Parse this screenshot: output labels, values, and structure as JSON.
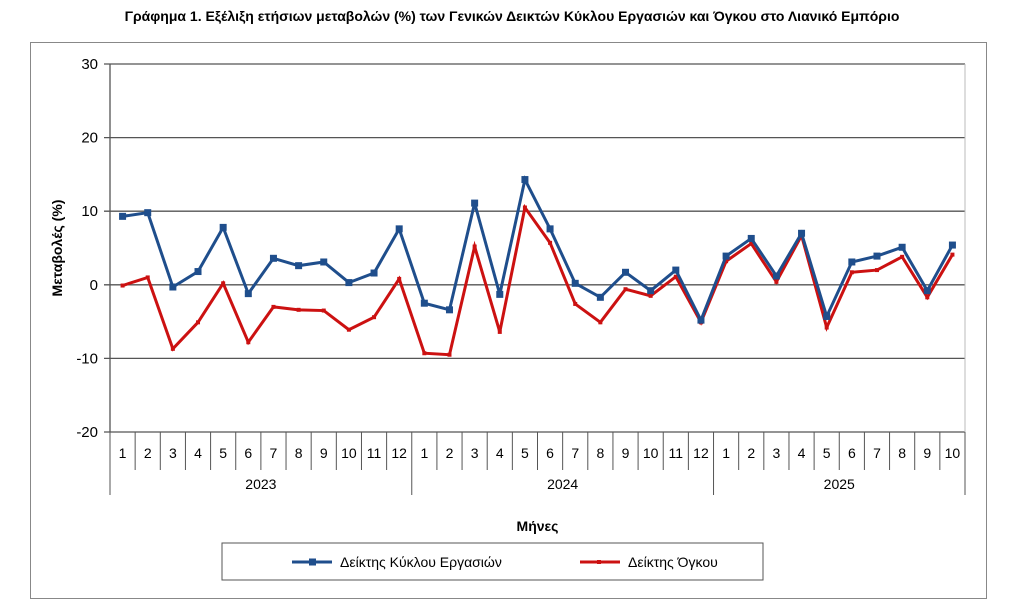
{
  "chart_data": {
    "type": "line",
    "title": "Γράφημα 1. Εξέλιξη ετήσιων μεταβολών (%) των Γενικών Δεικτών Κύκλου Εργασιών και Όγκου στο Λιανικό Εμπόριο",
    "xlabel": "Μήνες",
    "ylabel": "Μεταβολές (%)",
    "ylim": [
      -20,
      30
    ],
    "yticks": [
      "30",
      "20",
      "10",
      "0",
      "-10",
      "-20"
    ],
    "grid": true,
    "legend_position": "bottom",
    "years": [
      {
        "label": "2023",
        "months": 12
      },
      {
        "label": "2024",
        "months": 12
      },
      {
        "label": "2025",
        "months": 10
      }
    ],
    "months": [
      "1",
      "2",
      "3",
      "4",
      "5",
      "6",
      "7",
      "8",
      "9",
      "10",
      "11",
      "12",
      "1",
      "2",
      "3",
      "4",
      "5",
      "6",
      "7",
      "8",
      "9",
      "10",
      "11",
      "12",
      "1",
      "2",
      "3",
      "4",
      "5",
      "6",
      "7",
      "8",
      "9",
      "10"
    ],
    "series": [
      {
        "name": "Δείκτης Κύκλου Εργασιών",
        "color": "#1f4e8c",
        "values": [
          9.3,
          9.8,
          -0.3,
          1.8,
          7.8,
          -1.2,
          3.6,
          2.6,
          3.1,
          0.3,
          1.6,
          7.6,
          -2.5,
          -3.4,
          11.1,
          -1.3,
          14.3,
          7.6,
          0.2,
          -1.7,
          1.7,
          -0.8,
          2.0,
          -4.8,
          3.9,
          6.3,
          1.2,
          7.0,
          -4.3,
          3.1,
          3.9,
          5.1,
          -0.8,
          5.4
        ]
      },
      {
        "name": "Δείκτης Όγκου",
        "color": "#cc1111",
        "values": [
          -0.1,
          1.0,
          -8.7,
          -5.1,
          0.2,
          -7.8,
          -3.0,
          -3.4,
          -3.5,
          -6.1,
          -4.4,
          0.8,
          -9.3,
          -9.5,
          5.2,
          -6.4,
          10.5,
          5.7,
          -2.6,
          -5.1,
          -0.6,
          -1.5,
          1.1,
          -5.1,
          3.2,
          5.6,
          0.4,
          6.7,
          -5.8,
          1.7,
          2.0,
          3.8,
          -1.7,
          4.1
        ]
      }
    ]
  }
}
